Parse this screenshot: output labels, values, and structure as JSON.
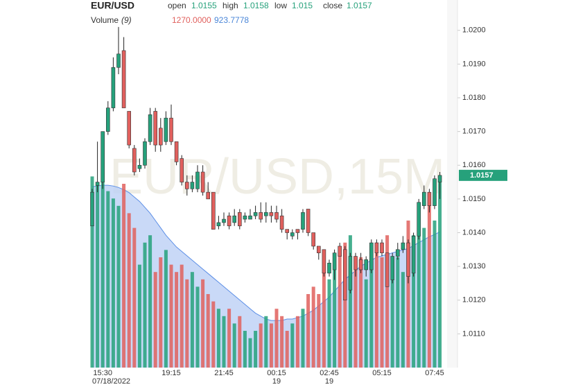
{
  "chart_data": {
    "type": "candlestick",
    "symbol": "EUR/USD",
    "watermark": "EUR/USD,15M",
    "ohlc_names": [
      "open",
      "high",
      "low",
      "close"
    ],
    "volume_title": "Volume",
    "volume_period": "(9)",
    "volume_value_label": "1270.0000",
    "volume_ma_label": "923.7778",
    "up_color": "#26a17b",
    "down_color": "#e0605d",
    "ma_color": "#5b8ee6",
    "categories": [
      null,
      null,
      "15:30",
      null,
      null,
      null,
      null,
      null,
      null,
      null,
      null,
      null,
      null,
      null,
      null,
      "19:15",
      null,
      null,
      null,
      null,
      null,
      null,
      null,
      null,
      null,
      "21:45",
      null,
      null,
      null,
      null,
      null,
      null,
      null,
      null,
      null,
      "00:15",
      null,
      null,
      null,
      null,
      null,
      null,
      null,
      null,
      null,
      "02:45",
      null,
      null,
      null,
      null,
      null,
      null,
      null,
      null,
      null,
      "05:15",
      null,
      null,
      null,
      null,
      null,
      null,
      null,
      null,
      null,
      "07:45",
      null
    ],
    "date_labels": [
      null,
      null,
      "07/18/2022",
      null,
      null,
      null,
      null,
      null,
      null,
      null,
      null,
      null,
      null,
      null,
      null,
      null,
      null,
      null,
      null,
      null,
      null,
      null,
      null,
      null,
      null,
      null,
      null,
      null,
      null,
      null,
      null,
      null,
      null,
      null,
      null,
      "19",
      null,
      null,
      null,
      null,
      null,
      null,
      null,
      null,
      null,
      "19",
      null,
      null,
      null,
      null,
      null,
      null,
      null,
      null,
      null,
      null,
      null,
      null,
      null,
      null,
      null,
      null,
      null,
      null,
      null,
      null,
      null
    ],
    "open": [
      1.0142,
      1.0154,
      1.0155,
      1.017,
      1.0177,
      1.0189,
      1.0194,
      1.0176,
      1.0165,
      1.0159,
      1.016,
      1.0167,
      1.0176,
      1.0171,
      1.0167,
      1.0174,
      1.0167,
      1.0162,
      1.0155,
      1.0153,
      1.0153,
      1.0158,
      1.0152,
      1.0152,
      1.0142,
      1.0143,
      1.0145,
      1.0143,
      1.0146,
      1.0144,
      1.0144,
      1.0145,
      1.0146,
      1.0145,
      1.0146,
      1.0146,
      1.0145,
      1.0141,
      1.0139,
      1.0141,
      1.0141,
      1.0147,
      1.014,
      1.0136,
      1.0135,
      1.0128,
      1.0129,
      1.0136,
      1.0135,
      1.0123,
      1.0133,
      1.0132,
      1.0129,
      1.0129,
      1.0137,
      1.0137,
      1.0134,
      1.0126,
      1.0133,
      1.0135,
      1.0137,
      1.0128,
      1.0139,
      1.0148,
      1.0152,
      1.0148,
      1.0155
    ],
    "high": [
      1.0153,
      1.0167,
      1.017,
      1.0179,
      1.0192,
      1.0201,
      1.0198,
      1.0176,
      1.0166,
      1.0162,
      1.0168,
      1.0177,
      1.0177,
      1.0174,
      1.0176,
      1.0178,
      1.0167,
      1.0163,
      1.0157,
      1.0157,
      1.016,
      1.016,
      1.0155,
      1.0152,
      1.0145,
      1.0146,
      1.0146,
      1.0147,
      1.0147,
      1.0146,
      1.0147,
      1.0148,
      1.0149,
      1.0149,
      1.0148,
      1.0148,
      1.0147,
      1.0141,
      1.0141,
      1.0141,
      1.0147,
      1.0147,
      1.014,
      1.0136,
      1.0135,
      1.0132,
      1.0135,
      1.0137,
      1.0136,
      1.0134,
      1.0134,
      1.0134,
      1.0133,
      1.0138,
      1.0138,
      1.0138,
      1.0134,
      1.0134,
      1.0137,
      1.0139,
      1.0138,
      1.014,
      1.015,
      1.0154,
      1.0153,
      1.0157,
      1.0158
    ],
    "low": [
      1.0142,
      1.0152,
      1.0153,
      1.0169,
      1.0176,
      1.0187,
      1.0177,
      1.0165,
      1.0157,
      1.0158,
      1.0159,
      1.0166,
      1.0164,
      1.0164,
      1.0166,
      1.0166,
      1.016,
      1.0154,
      1.0151,
      1.0152,
      1.0152,
      1.0151,
      1.015,
      1.0141,
      1.0141,
      1.0142,
      1.0141,
      1.0142,
      1.0141,
      1.0143,
      1.0144,
      1.0144,
      1.0143,
      1.0143,
      1.0143,
      1.0143,
      1.014,
      1.0138,
      1.0138,
      1.0138,
      1.014,
      1.0139,
      1.0135,
      1.0132,
      1.0127,
      1.0127,
      1.0126,
      1.0133,
      1.012,
      1.0122,
      1.0127,
      1.0128,
      1.0127,
      1.0128,
      1.0133,
      1.0133,
      1.0124,
      1.0125,
      1.0132,
      1.0134,
      1.0125,
      1.0127,
      1.0138,
      1.0147,
      1.0146,
      1.0147,
      1.015
    ],
    "close": [
      1.0152,
      1.0155,
      1.017,
      1.0177,
      1.0189,
      1.0193,
      1.0177,
      1.0166,
      1.0158,
      1.016,
      1.0167,
      1.0175,
      1.0166,
      1.0166,
      1.0174,
      1.0167,
      1.0161,
      1.0155,
      1.0153,
      1.0155,
      1.0158,
      1.0152,
      1.015,
      1.0141,
      1.0143,
      1.0144,
      1.0142,
      1.0145,
      1.0142,
      1.0145,
      1.0145,
      1.0146,
      1.0144,
      1.0146,
      1.0145,
      1.0144,
      1.0141,
      1.014,
      1.014,
      1.014,
      1.0146,
      1.014,
      1.0136,
      1.0134,
      1.0128,
      1.0131,
      1.0134,
      1.0133,
      1.012,
      1.0133,
      1.0129,
      1.0129,
      1.0132,
      1.0137,
      1.0134,
      1.0134,
      1.0124,
      1.0133,
      1.0135,
      1.0137,
      1.0127,
      1.0139,
      1.0149,
      1.0152,
      1.0148,
      1.0156,
      1.0157
    ],
    "volume": [
      1300,
      1250,
      1320,
      1200,
      1150,
      1100,
      1250,
      1050,
      950,
      700,
      850,
      900,
      650,
      750,
      800,
      700,
      650,
      700,
      600,
      650,
      550,
      600,
      500,
      450,
      400,
      350,
      400,
      300,
      350,
      250,
      200,
      250,
      300,
      350,
      300,
      400,
      350,
      250,
      300,
      350,
      400,
      500,
      550,
      500,
      650,
      600,
      700,
      800,
      850,
      900,
      700,
      750,
      600,
      800,
      850,
      750,
      900,
      700,
      750,
      650,
      1000,
      900,
      1050,
      950,
      1150,
      1000,
      1270
    ],
    "volume_ma": [
      1230,
      1235,
      1240,
      1240,
      1235,
      1225,
      1210,
      1190,
      1160,
      1130,
      1090,
      1050,
      1000,
      950,
      900,
      860,
      820,
      790,
      760,
      730,
      700,
      670,
      640,
      610,
      580,
      550,
      520,
      490,
      460,
      430,
      400,
      370,
      350,
      330,
      320,
      320,
      320,
      330,
      330,
      340,
      350,
      370,
      390,
      420,
      450,
      480,
      520,
      560,
      600,
      630,
      660,
      690,
      710,
      730,
      750,
      760,
      770,
      780,
      790,
      800,
      810,
      830,
      850,
      870,
      890,
      905,
      923.7778
    ],
    "ylim": [
      1.01,
      1.0209
    ],
    "yticks": [
      {
        "value": 1.011,
        "label": "1.0110"
      },
      {
        "value": 1.012,
        "label": "1.0120"
      },
      {
        "value": 1.013,
        "label": "1.0130"
      },
      {
        "value": 1.014,
        "label": "1.0140"
      },
      {
        "value": 1.015,
        "label": "1.0150"
      },
      {
        "value": 1.016,
        "label": "1.0160"
      },
      {
        "value": 1.017,
        "label": "1.0170"
      },
      {
        "value": 1.018,
        "label": "1.0180"
      },
      {
        "value": 1.019,
        "label": "1.0190"
      },
      {
        "value": 1.02,
        "label": "1.0200"
      }
    ],
    "vlim": [
      0,
      2500
    ],
    "grid": false
  }
}
